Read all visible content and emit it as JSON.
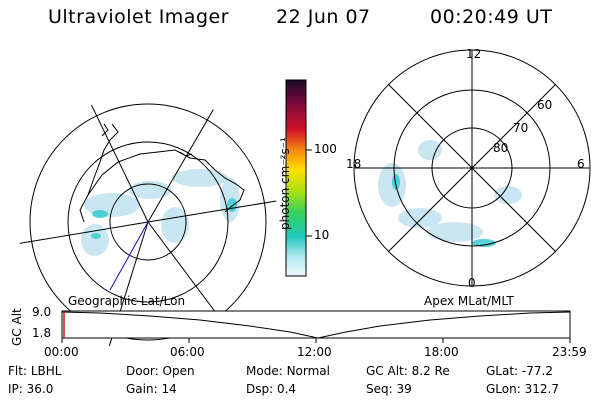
{
  "header": {
    "title": "Ultraviolet Imager",
    "date": "22 Jun 07",
    "time": "00:20:49 UT"
  },
  "left_map": {
    "label": "Geographic Lat/Lon"
  },
  "right_map": {
    "label": "Apex MLat/MLT",
    "mlt_labels": {
      "top": "12",
      "right": "6",
      "bottom": "0",
      "left": "18"
    },
    "lat_labels": [
      "60",
      "70",
      "80"
    ]
  },
  "colorbar": {
    "axis_label": "photon cm⁻²s⁻¹",
    "ticks": [
      "100",
      "10"
    ],
    "colors": [
      "#1a0a2a",
      "#7b0a3a",
      "#d0102a",
      "#f58a10",
      "#ffe000",
      "#a8e010",
      "#34d060",
      "#20c8c0",
      "#b0e8f0",
      "#f2f8fa"
    ]
  },
  "timeline": {
    "ylabel": "GC Alt",
    "yticks": [
      "9.0",
      "1.8"
    ],
    "xticks": [
      "00:00",
      "06:00",
      "12:00",
      "18:00",
      "23:59"
    ]
  },
  "info": {
    "row1": [
      {
        "key": "Flt:",
        "value": "LBHL"
      },
      {
        "key": "Door:",
        "value": "Open"
      },
      {
        "key": "Mode:",
        "value": "Normal"
      },
      {
        "key": "GC Alt:",
        "value": "8.2 Re"
      },
      {
        "key": "GLat:",
        "value": "-77.2"
      }
    ],
    "row2": [
      {
        "key": "IP:",
        "value": "36.0"
      },
      {
        "key": "Gain:",
        "value": "14"
      },
      {
        "key": "Dsp:",
        "value": "0.4"
      },
      {
        "key": "Seq:",
        "value": "39"
      },
      {
        "key": "GLon:",
        "value": "312.7"
      }
    ]
  }
}
